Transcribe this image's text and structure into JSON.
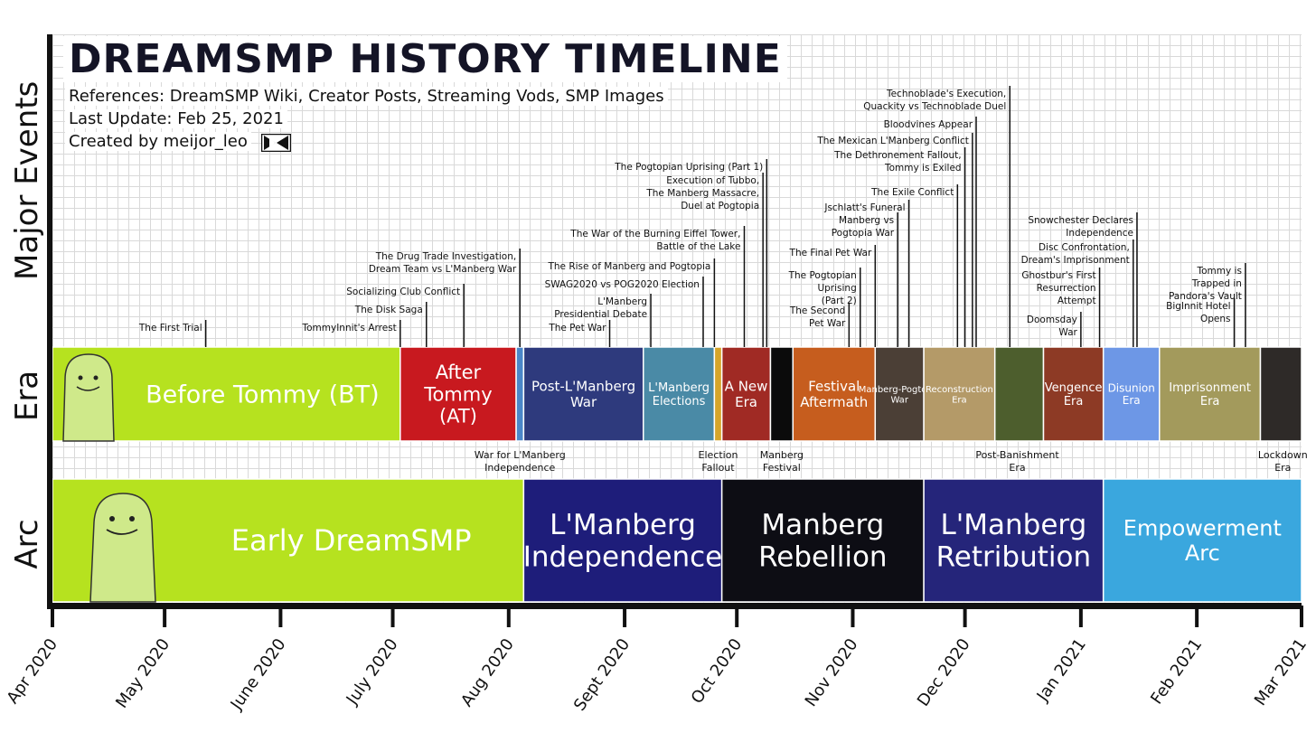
{
  "header": {
    "title": "DREAMSMP HISTORY TIMELINE",
    "references": "References: DreamSMP Wiki, Creator Posts, Streaming Vods, SMP Images",
    "last_update": "Last Update: Feb 25, 2021",
    "created_by": "Created by meijor_leo"
  },
  "row_labels": {
    "major_events": "Major Events",
    "era": "Era",
    "arc": "Arc"
  },
  "chart_data": {
    "type": "timeline",
    "title": "DREAMSMP HISTORY TIMELINE",
    "x_range": [
      "2020-04-01",
      "2021-03-01"
    ],
    "x_ticks": [
      {
        "date": "2020-04-01",
        "label": "Apr 2020"
      },
      {
        "date": "2020-05-01",
        "label": "May 2020"
      },
      {
        "date": "2020-06-01",
        "label": "June 2020"
      },
      {
        "date": "2020-07-01",
        "label": "July 2020"
      },
      {
        "date": "2020-08-01",
        "label": "Aug 2020"
      },
      {
        "date": "2020-09-01",
        "label": "Sept 2020"
      },
      {
        "date": "2020-10-01",
        "label": "Oct 2020"
      },
      {
        "date": "2020-11-01",
        "label": "Nov 2020"
      },
      {
        "date": "2020-12-01",
        "label": "Dec 2020"
      },
      {
        "date": "2021-01-01",
        "label": "Jan 2021"
      },
      {
        "date": "2021-02-01",
        "label": "Feb 2021"
      },
      {
        "date": "2021-03-01",
        "label": "Mar 2021"
      }
    ],
    "events": [
      {
        "date": "2020-05-12",
        "lines": [
          "The First Trial"
        ]
      },
      {
        "date": "2020-07-03",
        "lines": [
          "TommyInnit's Arrest"
        ]
      },
      {
        "date": "2020-07-10",
        "lines": [
          "The Disk Saga"
        ]
      },
      {
        "date": "2020-07-20",
        "lines": [
          "Socializing Club Conflict"
        ]
      },
      {
        "date": "2020-08-04",
        "lines": [
          "The Drug Trade Investigation,",
          "Dream Team vs L'Manberg War"
        ]
      },
      {
        "date": "2020-08-28",
        "lines": [
          "The Pet War"
        ]
      },
      {
        "date": "2020-09-08",
        "lines": [
          "L'Manberg",
          "Presidential Debate"
        ]
      },
      {
        "date": "2020-09-22",
        "lines": [
          "SWAG2020 vs POG2020 Election"
        ]
      },
      {
        "date": "2020-09-25",
        "lines": [
          "The Rise of Manberg and Pogtopia"
        ]
      },
      {
        "date": "2020-10-03",
        "lines": [
          "The War of the Burning Eiffel Tower,",
          "Battle of the Lake"
        ]
      },
      {
        "date": "2020-10-08",
        "lines": [
          "Execution of Tubbo,",
          "The Manberg Massacre,",
          "Duel at Pogtopia"
        ]
      },
      {
        "date": "2020-10-09",
        "lines": [
          "The Pogtopian Uprising (Part 1)"
        ]
      },
      {
        "date": "2020-10-31",
        "lines": [
          "The Second",
          "Pet War"
        ]
      },
      {
        "date": "2020-11-03",
        "lines": [
          "The Pogtopian",
          "Uprising",
          "(Part 2)"
        ]
      },
      {
        "date": "2020-11-07",
        "lines": [
          "The Final Pet War"
        ]
      },
      {
        "date": "2020-11-13",
        "lines": [
          "Manberg vs",
          "Pogtopia War"
        ]
      },
      {
        "date": "2020-11-16",
        "lines": [
          "Jschlatt's Funeral"
        ]
      },
      {
        "date": "2020-11-29",
        "lines": [
          "The Exile Conflict"
        ]
      },
      {
        "date": "2020-12-01",
        "lines": [
          "The Dethronement Fallout,",
          "Tommy is Exiled"
        ]
      },
      {
        "date": "2020-12-03",
        "lines": [
          "The Mexican L'Manberg Conflict"
        ]
      },
      {
        "date": "2020-12-04",
        "lines": [
          "Bloodvines Appear"
        ]
      },
      {
        "date": "2020-12-13",
        "lines": [
          "Technoblade's Execution,",
          "Quackity vs Technoblade Duel"
        ]
      },
      {
        "date": "2021-01-01",
        "lines": [
          "Doomsday",
          "War"
        ]
      },
      {
        "date": "2021-01-06",
        "lines": [
          "Ghostbur's First",
          "Resurrection",
          "Attempt"
        ]
      },
      {
        "date": "2021-01-15",
        "lines": [
          "Disc Confrontation,",
          "Dream's Imprisonment"
        ]
      },
      {
        "date": "2021-01-16",
        "lines": [
          "Snowchester Declares",
          "Independence"
        ]
      },
      {
        "date": "2021-02-11",
        "lines": [
          "BigInnit Hotel",
          "Opens"
        ]
      },
      {
        "date": "2021-02-14",
        "lines": [
          "Tommy is",
          "Trapped in",
          "Pandora's Vault"
        ]
      }
    ],
    "eras": [
      {
        "start": "2020-04-01",
        "end": "2020-07-03",
        "label": "Before Tommy (BT)",
        "color": "#b6e21f",
        "text_color": "#111111",
        "size": 27
      },
      {
        "start": "2020-07-03",
        "end": "2020-08-03",
        "label": "After Tommy (AT)",
        "color": "#c8191f",
        "text_color": "#ffffff",
        "size": 21
      },
      {
        "start": "2020-08-03",
        "end": "2020-08-05",
        "label": "",
        "color": "#4b87c9",
        "text_color": "#ffffff",
        "size": 10
      },
      {
        "start": "2020-08-05",
        "end": "2020-09-06",
        "label": "Post-L'Manberg War",
        "color": "#2e3a7d",
        "text_color": "#ffffff",
        "size": 15
      },
      {
        "start": "2020-09-06",
        "end": "2020-09-25",
        "label": "L'Manberg Elections",
        "color": "#4a8aa6",
        "text_color": "#ffffff",
        "size": 13
      },
      {
        "start": "2020-09-25",
        "end": "2020-09-27",
        "label": "",
        "color": "#d6a52a",
        "text_color": "#ffffff",
        "size": 10
      },
      {
        "start": "2020-09-27",
        "end": "2020-10-10",
        "label": "A New Era",
        "color": "#a02a24",
        "text_color": "#ffffff",
        "size": 15
      },
      {
        "start": "2020-10-10",
        "end": "2020-10-16",
        "label": "",
        "color": "#0b0b0b",
        "text_color": "#ffffff",
        "size": 10
      },
      {
        "start": "2020-10-16",
        "end": "2020-11-07",
        "label": "Festival Aftermath",
        "color": "#c65d1e",
        "text_color": "#ffffff",
        "size": 15
      },
      {
        "start": "2020-11-07",
        "end": "2020-11-20",
        "label": "Manberg-Pogtopia War",
        "color": "#4b3f36",
        "text_color": "#ffffff",
        "size": 10
      },
      {
        "start": "2020-11-20",
        "end": "2020-12-09",
        "label": "Reconstruction Era",
        "color": "#b49a68",
        "text_color": "#ffffff",
        "size": 10
      },
      {
        "start": "2020-12-09",
        "end": "2020-12-22",
        "label": "",
        "color": "#4d5e2d",
        "text_color": "#ffffff",
        "size": 10
      },
      {
        "start": "2020-12-22",
        "end": "2021-01-07",
        "label": "Vengence Era",
        "color": "#8d3a25",
        "text_color": "#ffffff",
        "size": 13
      },
      {
        "start": "2021-01-07",
        "end": "2021-01-22",
        "label": "Disunion Era",
        "color": "#6d97e6",
        "text_color": "#ffffff",
        "size": 12
      },
      {
        "start": "2021-01-22",
        "end": "2021-02-18",
        "label": "Imprisonment Era",
        "color": "#a39a5c",
        "text_color": "#ffffff",
        "size": 13
      },
      {
        "start": "2021-02-18",
        "end": "2021-03-01",
        "label": "",
        "color": "#2e2a28",
        "text_color": "#ffffff",
        "size": 10
      }
    ],
    "era_notes": [
      {
        "date": "2020-08-04",
        "lines": [
          "War for L'Manberg",
          "Independence"
        ],
        "color": "#111111"
      },
      {
        "date": "2020-09-26",
        "lines": [
          "Election",
          "Fallout"
        ],
        "color": "#111111"
      },
      {
        "date": "2020-10-13",
        "lines": [
          "Manberg",
          "Festival"
        ],
        "color": "#e0411c"
      },
      {
        "date": "2020-12-15",
        "lines": [
          "Post-Banishment",
          "Era"
        ],
        "color": "#111111"
      },
      {
        "date": "2021-02-24",
        "lines": [
          "Lockdown",
          "Era"
        ],
        "color": "#111111"
      }
    ],
    "arcs": [
      {
        "start": "2020-04-01",
        "end": "2020-08-05",
        "label": "Early DreamSMP",
        "color": "#b6e21f",
        "text_color": "#111111",
        "size": 32
      },
      {
        "start": "2020-08-05",
        "end": "2020-09-27",
        "label": "L'Manberg Independence",
        "color": "#1e1d7a",
        "text_color": "#ffffff",
        "size": 31
      },
      {
        "start": "2020-09-27",
        "end": "2020-11-20",
        "label": "Manberg Rebellion",
        "color": "#0d0d14",
        "text_color": "#ff4a1c",
        "size": 31
      },
      {
        "start": "2020-11-20",
        "end": "2021-01-07",
        "label": "L'Manberg Retribution",
        "color": "#25257a",
        "text_color": "#ffffff",
        "size": 31
      },
      {
        "start": "2021-01-07",
        "end": "2021-03-01",
        "label": "Empowerment Arc",
        "color": "#3aa7de",
        "text_color": "#ffffff",
        "size": 24
      }
    ]
  }
}
